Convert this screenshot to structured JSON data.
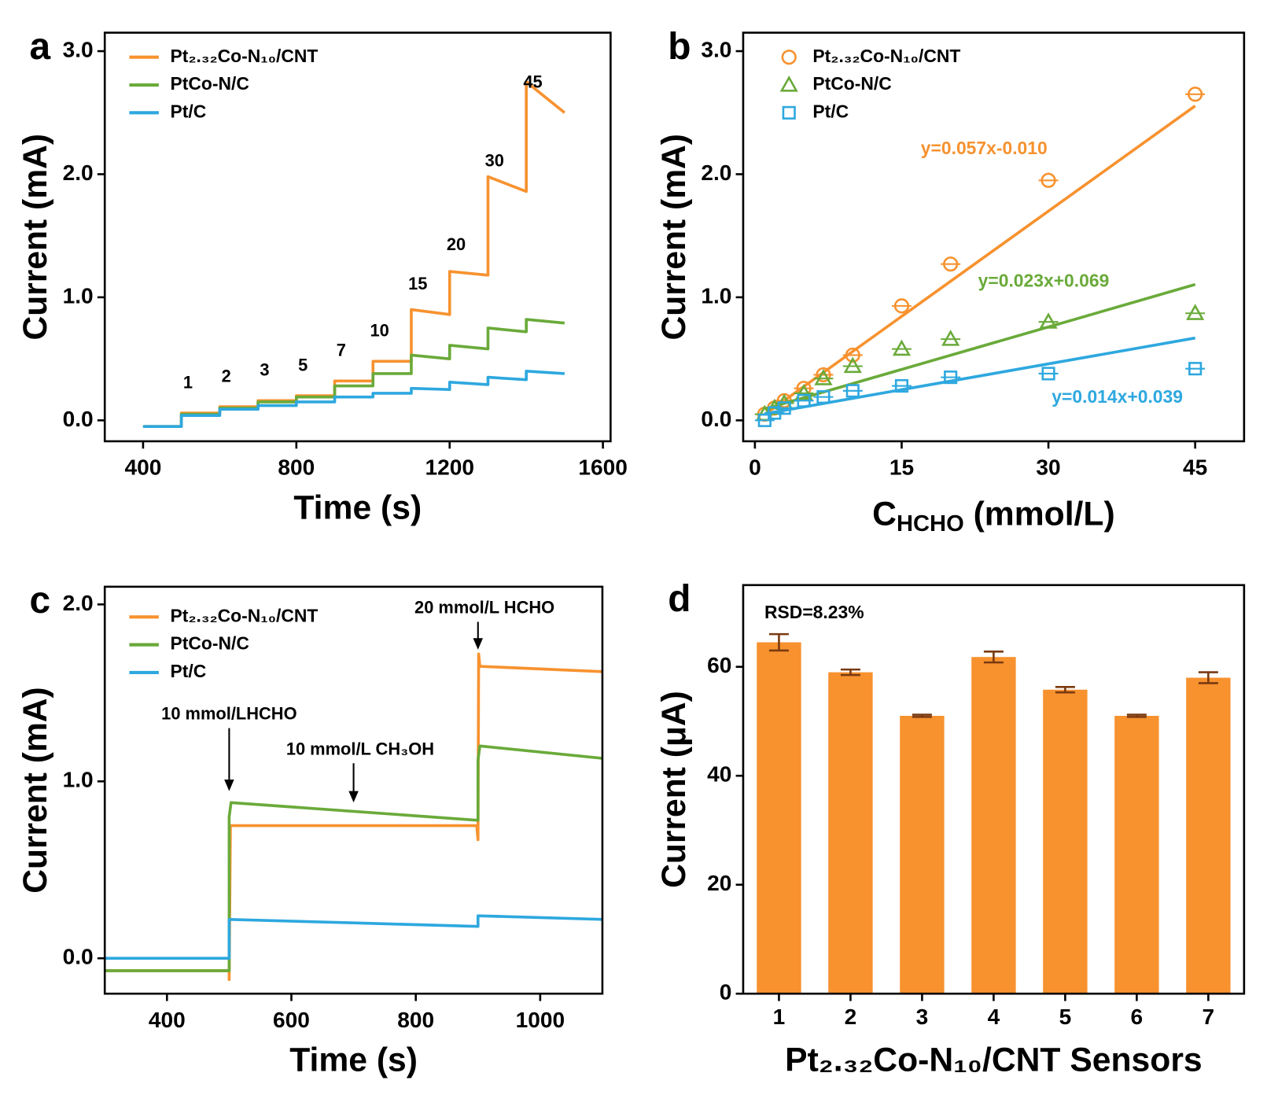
{
  "chart_data": [
    {
      "type": "line",
      "panel": "a",
      "xlabel": "Time (s)",
      "ylabel": "Current (mA)",
      "xlim": [
        300,
        1620
      ],
      "ylim": [
        -0.17,
        3.15
      ],
      "xticks": [
        400,
        800,
        1200,
        1600
      ],
      "yticks": [
        {
          "value": 0,
          "label": "0.0"
        },
        {
          "value": 1,
          "label": "1.0"
        },
        {
          "value": 2,
          "label": "2.0"
        },
        {
          "value": 3,
          "label": "3.0"
        }
      ],
      "legend": "upper left",
      "step_labels": [
        1,
        2,
        3,
        5,
        7,
        10,
        15,
        20,
        30,
        45
      ],
      "series": [
        {
          "name": "Pt₂.₃₂Co-N₁₀/CNT",
          "color": "#f7922f",
          "x": [
            400,
            500,
            500,
            600,
            600,
            700,
            700,
            800,
            800,
            900,
            900,
            1000,
            1000,
            1100,
            1100,
            1200,
            1200,
            1300,
            1300,
            1400,
            1400,
            1500
          ],
          "values": [
            -0.05,
            -0.05,
            0.06,
            0.06,
            0.11,
            0.11,
            0.16,
            0.16,
            0.2,
            0.2,
            0.32,
            0.32,
            0.48,
            0.48,
            0.9,
            0.86,
            1.21,
            1.18,
            1.98,
            1.86,
            2.75,
            2.5
          ]
        },
        {
          "name": "PtCo-N/C",
          "color": "#6aaa3a",
          "x": [
            400,
            500,
            500,
            600,
            600,
            700,
            700,
            800,
            800,
            900,
            900,
            1000,
            1000,
            1100,
            1100,
            1200,
            1200,
            1300,
            1300,
            1400,
            1400,
            1500
          ],
          "values": [
            -0.05,
            -0.05,
            0.05,
            0.05,
            0.1,
            0.1,
            0.15,
            0.15,
            0.19,
            0.19,
            0.28,
            0.28,
            0.38,
            0.38,
            0.53,
            0.5,
            0.61,
            0.58,
            0.75,
            0.72,
            0.82,
            0.79
          ]
        },
        {
          "name": "Pt/C",
          "color": "#2ea8df",
          "x": [
            400,
            500,
            500,
            600,
            600,
            700,
            700,
            800,
            800,
            900,
            900,
            1000,
            1000,
            1100,
            1100,
            1200,
            1200,
            1300,
            1300,
            1400,
            1400,
            1500
          ],
          "values": [
            -0.05,
            -0.05,
            0.04,
            0.04,
            0.09,
            0.09,
            0.12,
            0.12,
            0.15,
            0.15,
            0.19,
            0.19,
            0.22,
            0.22,
            0.26,
            0.25,
            0.31,
            0.29,
            0.35,
            0.33,
            0.4,
            0.38
          ]
        }
      ]
    },
    {
      "type": "scatter",
      "panel": "b",
      "xlabel": [
        "C",
        "HCHO",
        " (mmol/L)"
      ],
      "ylabel": "Current (mA)",
      "xlim": [
        -1.2,
        50
      ],
      "ylim": [
        -0.17,
        3.15
      ],
      "xticks": [
        0,
        15,
        30,
        45
      ],
      "yticks": [
        {
          "value": 0,
          "label": "0.0"
        },
        {
          "value": 1,
          "label": "1.0"
        },
        {
          "value": 2,
          "label": "2.0"
        },
        {
          "value": 3,
          "label": "3.0"
        }
      ],
      "legend": "upper left",
      "x": [
        1,
        2,
        3,
        5,
        7,
        10,
        15,
        20,
        30,
        45
      ],
      "series": [
        {
          "name": "Pt₂.₃₂Co-N₁₀/CNT",
          "color": "#f7922f",
          "marker": "circle",
          "values": [
            0.05,
            0.1,
            0.16,
            0.26,
            0.37,
            0.53,
            0.93,
            1.27,
            1.95,
            2.65
          ],
          "fit": {
            "slope": 0.057,
            "intercept": -0.01,
            "label": "y=0.057x-0.010"
          }
        },
        {
          "name": "PtCo-N/C",
          "color": "#6aaa3a",
          "marker": "triangle",
          "values": [
            0.05,
            0.1,
            0.14,
            0.22,
            0.34,
            0.44,
            0.58,
            0.66,
            0.8,
            0.87
          ],
          "fit": {
            "slope": 0.023,
            "intercept": 0.069,
            "label": "y=0.023x+0.069"
          }
        },
        {
          "name": "Pt/C",
          "color": "#2ea8df",
          "marker": "square",
          "values": [
            0.0,
            0.06,
            0.1,
            0.16,
            0.19,
            0.24,
            0.28,
            0.35,
            0.38,
            0.42
          ],
          "fit": {
            "slope": 0.014,
            "intercept": 0.039,
            "label": "y=0.014x+0.039"
          }
        }
      ]
    },
    {
      "type": "line",
      "panel": "c",
      "xlabel": "Time (s)",
      "ylabel": "Current (mA)",
      "xlim": [
        300,
        1100
      ],
      "ylim": [
        -0.2,
        2.1
      ],
      "xticks": [
        400,
        600,
        800,
        1000
      ],
      "yticks": [
        {
          "value": 0,
          "label": "0.0"
        },
        {
          "value": 1,
          "label": "1.0"
        },
        {
          "value": 2,
          "label": "2.0"
        }
      ],
      "legend": "upper left",
      "annotations": [
        {
          "text": "10 mmol/LHCHO",
          "x": 500
        },
        {
          "text": "10 mmol/L CH₃OH",
          "x": 700
        },
        {
          "text": "20 mmol/L HCHO",
          "x": 900
        }
      ],
      "series": [
        {
          "name": "Pt₂.₃₂Co-N₁₀/CNT",
          "color": "#f7922f",
          "x": [
            300,
            500,
            500,
            502,
            898,
            900,
            901,
            903,
            1100
          ],
          "values": [
            -0.07,
            -0.07,
            -0.12,
            0.75,
            0.75,
            0.67,
            1.72,
            1.65,
            1.62
          ]
        },
        {
          "name": "PtCo-N/C",
          "color": "#6aaa3a",
          "x": [
            300,
            500,
            500,
            503,
            900,
            900,
            903,
            1100
          ],
          "values": [
            -0.07,
            -0.07,
            0.8,
            0.88,
            0.78,
            1.12,
            1.2,
            1.13
          ]
        },
        {
          "name": "Pt/C",
          "color": "#2ea8df",
          "x": [
            300,
            500,
            500,
            700,
            900,
            900,
            1100
          ],
          "values": [
            0.0,
            0.0,
            0.22,
            0.2,
            0.18,
            0.24,
            0.22
          ]
        }
      ]
    },
    {
      "type": "bar",
      "panel": "d",
      "xlabel": "Pt₂.₃₂Co-N₁₀/CNT Sensors",
      "ylabel": "Current (μA)",
      "ylim": [
        0,
        75
      ],
      "yticks": [
        0,
        20,
        40,
        60
      ],
      "annotation": "RSD=8.23%",
      "color": "#f7922f",
      "error_color": "#7a3a10",
      "categories": [
        "1",
        "2",
        "3",
        "4",
        "5",
        "6",
        "7"
      ],
      "values": [
        64.5,
        59,
        51,
        61.8,
        55.8,
        51,
        58
      ],
      "errors": [
        1.5,
        0.5,
        0.2,
        1.0,
        0.5,
        0.2,
        1.0
      ]
    }
  ]
}
